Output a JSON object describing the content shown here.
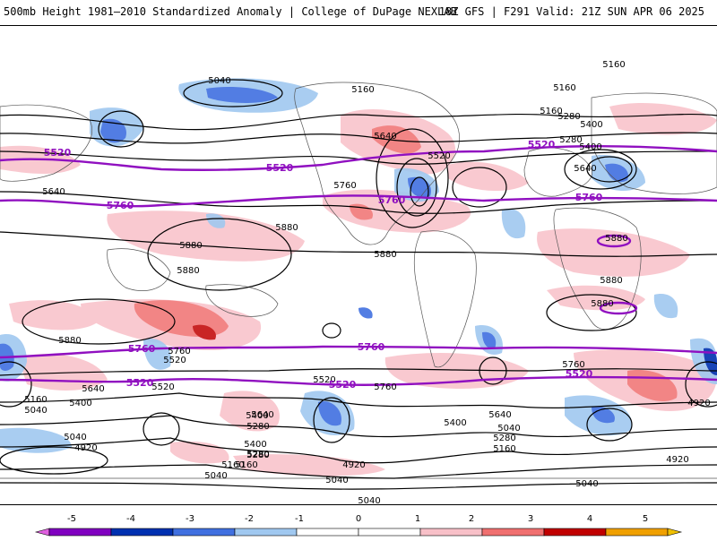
{
  "header": {
    "left_title": "500mb Height 1981–2010 Standardized Anomaly | College of DuPage NEXLAB",
    "right_title": "18Z GFS | F291 Valid: 21Z SUN APR 06 2025"
  },
  "colorbar": {
    "ticks": [
      "-5",
      "-4",
      "-3",
      "-2",
      "-1",
      "0",
      "1",
      "2",
      "3",
      "4",
      "5"
    ],
    "colors": [
      "#e060e0",
      "#8000c0",
      "#0030b0",
      "#4070e0",
      "#a0c8f0",
      "#ffffff",
      "#ffffff",
      "#f8c0c8",
      "#f07070",
      "#c00000",
      "#f0a000",
      "#f0c000"
    ]
  },
  "map": {
    "contour_labels_black": [
      "5040",
      "5160",
      "5160",
      "5280",
      "5400",
      "5520",
      "5640",
      "5760",
      "5880",
      "4920",
      "5040",
      "5160",
      "5280",
      "5400",
      "5520",
      "5640",
      "5760",
      "5880",
      "5160",
      "5040",
      "4920",
      "5040",
      "5880",
      "5640",
      "5520",
      "5400",
      "5280",
      "5160",
      "5040",
      "5760",
      "5880",
      "5880",
      "5400",
      "5280",
      "5160",
      "5640",
      "5520",
      "5040",
      "5160",
      "5280",
      "5400",
      "4920",
      "5040",
      "5880",
      "5760",
      "5640",
      "5640",
      "5880",
      "5880",
      "5160",
      "5280",
      "5400",
      "4920",
      "5040"
    ],
    "contour_labels_purple": [
      "5520",
      "5520",
      "5520",
      "5520",
      "5520",
      "5760",
      "5760",
      "5760",
      "5760",
      "5760",
      "5520"
    ]
  }
}
